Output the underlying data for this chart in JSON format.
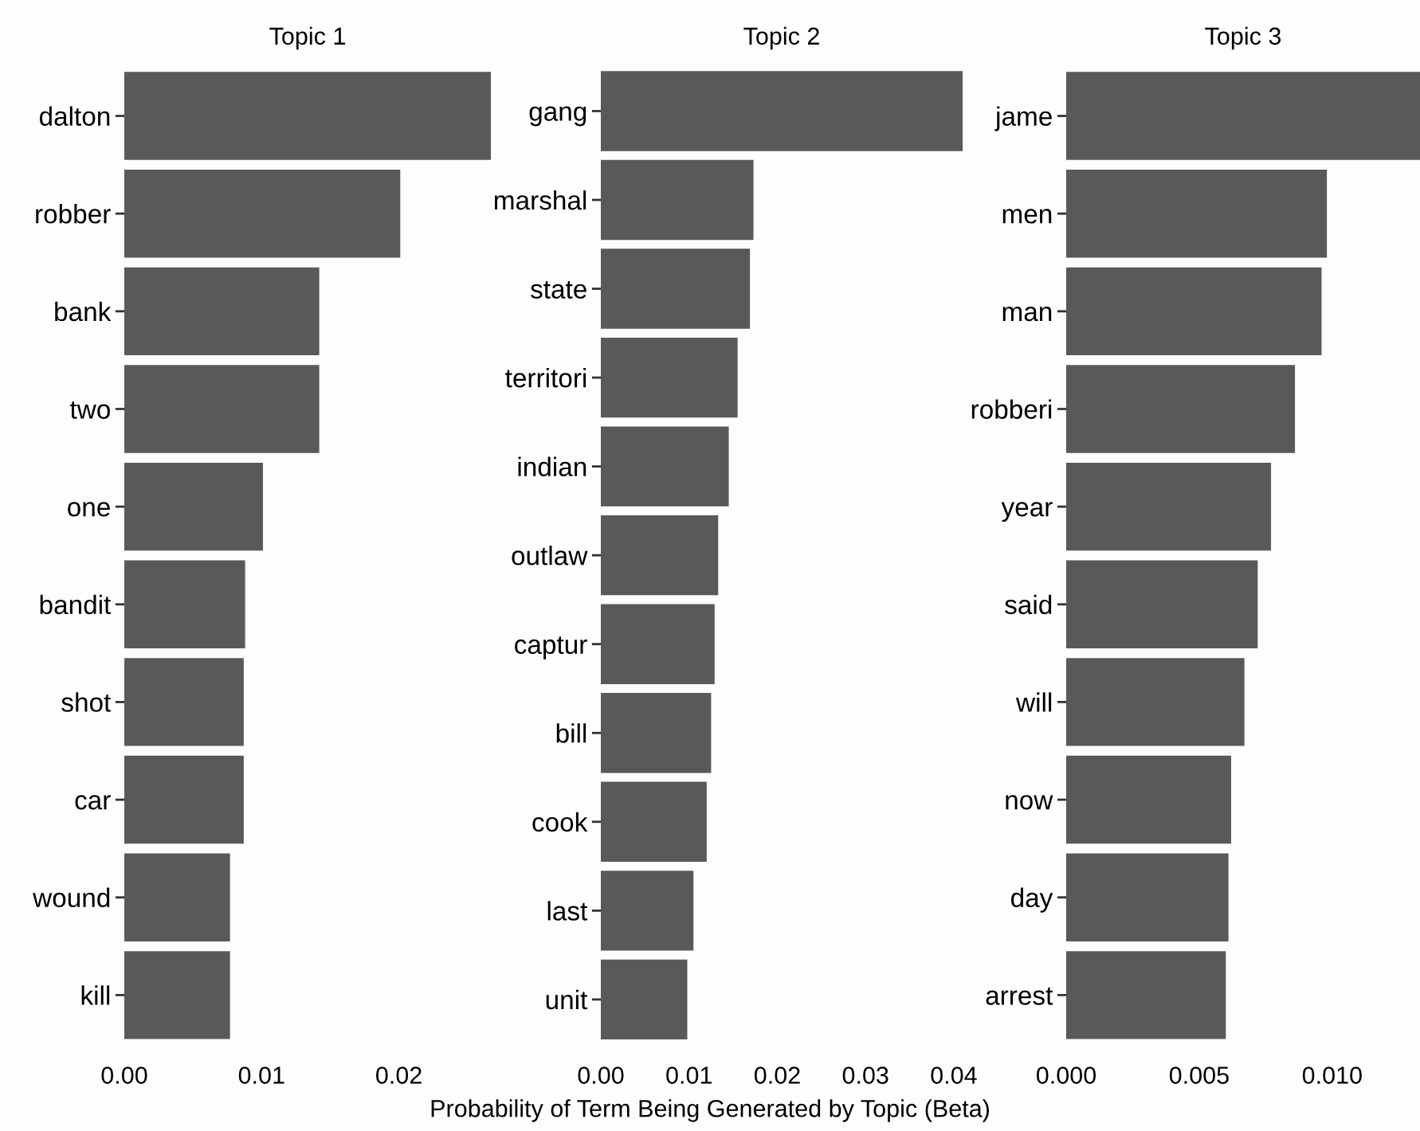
{
  "chart_data": [
    {
      "type": "bar",
      "orientation": "horizontal",
      "title": "Topic 1",
      "categories": [
        "dalton",
        "robber",
        "bank",
        "two",
        "one",
        "bandit",
        "shot",
        "car",
        "wound",
        "kill"
      ],
      "values": [
        0.0267,
        0.0201,
        0.0142,
        0.0142,
        0.0101,
        0.0088,
        0.0087,
        0.0087,
        0.0077,
        0.0077
      ],
      "color": "#595959",
      "xlim": [
        0,
        0.0267
      ],
      "xticks": [
        {
          "value": 0,
          "label": "0.00"
        },
        {
          "value": 0.01,
          "label": "0.01"
        },
        {
          "value": 0.02,
          "label": "0.02"
        }
      ],
      "grid": false,
      "legend": false
    },
    {
      "type": "bar",
      "orientation": "horizontal",
      "title": "Topic 2",
      "xlabel": "Probability of Term Being Generated by Topic (Beta)",
      "categories": [
        "gang",
        "marshal",
        "state",
        "territori",
        "indian",
        "outlaw",
        "captur",
        "bill",
        "cook",
        "last",
        "unit"
      ],
      "values": [
        0.041,
        0.0173,
        0.0169,
        0.0155,
        0.0145,
        0.0133,
        0.0129,
        0.0125,
        0.012,
        0.0105,
        0.0098
      ],
      "color": "#595959",
      "xlim": [
        0,
        0.041
      ],
      "xticks": [
        {
          "value": 0,
          "label": "0.00"
        },
        {
          "value": 0.01,
          "label": "0.01"
        },
        {
          "value": 0.02,
          "label": "0.02"
        },
        {
          "value": 0.03,
          "label": "0.03"
        },
        {
          "value": 0.04,
          "label": "0.04"
        }
      ],
      "grid": false,
      "legend": false
    },
    {
      "type": "bar",
      "orientation": "horizontal",
      "title": "Topic 3",
      "categories": [
        "jame",
        "men",
        "man",
        "robberi",
        "year",
        "said",
        "will",
        "now",
        "day",
        "arrest"
      ],
      "values": [
        0.0133,
        0.0098,
        0.0096,
        0.0086,
        0.0077,
        0.0072,
        0.0067,
        0.0062,
        0.0061,
        0.006
      ],
      "color": "#595959",
      "xlim": [
        0,
        0.0133
      ],
      "xticks": [
        {
          "value": 0,
          "label": "0.000"
        },
        {
          "value": 0.005,
          "label": "0.005"
        },
        {
          "value": 0.01,
          "label": "0.010"
        }
      ],
      "grid": false,
      "legend": false
    }
  ]
}
